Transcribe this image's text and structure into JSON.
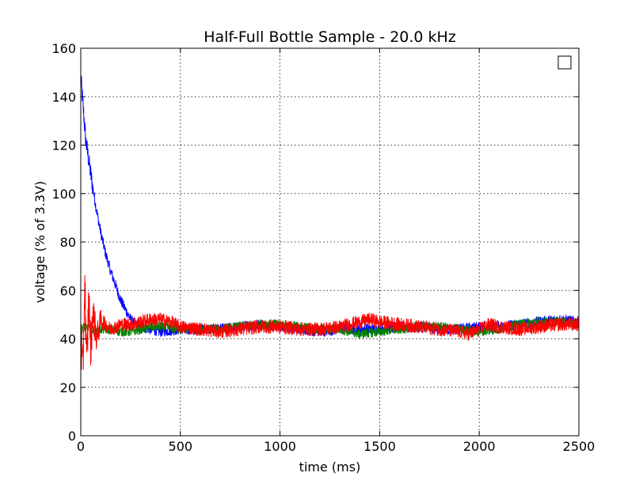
{
  "chart_data": {
    "type": "line",
    "title": "Half-Full Bottle Sample - 20.0 kHz",
    "xlabel": "time (ms)",
    "ylabel": "voltage (% of 3.3V)",
    "xlim": [
      0,
      2500
    ],
    "ylim": [
      0,
      160
    ],
    "xticks": [
      0,
      500,
      1000,
      1500,
      2000,
      2500
    ],
    "yticks": [
      0,
      20,
      40,
      60,
      80,
      100,
      120,
      140,
      160
    ],
    "grid": true,
    "legend": "top-right (empty box)",
    "series": [
      {
        "color": "#0000ff",
        "x": [
          0,
          10,
          25,
          50,
          75,
          100,
          125,
          150,
          175,
          200,
          225,
          250,
          275,
          300,
          350,
          400,
          500,
          600,
          700,
          800,
          900,
          1000,
          1100,
          1200,
          1300,
          1400,
          1500,
          1600,
          1700,
          1800,
          1900,
          2000,
          2100,
          2200,
          2300,
          2400,
          2500
        ],
        "y": [
          148,
          138,
          122,
          108,
          95,
          84,
          75,
          68,
          62,
          56,
          52,
          48,
          46,
          45,
          44,
          43,
          44,
          44,
          44,
          45,
          46,
          45,
          44,
          43,
          44,
          44,
          44,
          45,
          45,
          44,
          44,
          45,
          45,
          46,
          47,
          48,
          47
        ]
      },
      {
        "color": "#008000",
        "x": [
          0,
          25,
          50,
          75,
          100,
          150,
          200,
          250,
          300,
          350,
          400,
          500,
          600,
          700,
          800,
          900,
          1000,
          1100,
          1200,
          1300,
          1400,
          1500,
          1600,
          1700,
          1800,
          1900,
          2000,
          2100,
          2200,
          2300,
          2400,
          2500
        ],
        "y": [
          44,
          45,
          44,
          43,
          44,
          44,
          43,
          43,
          44,
          45,
          45,
          44,
          44,
          44,
          45,
          46,
          46,
          45,
          44,
          44,
          42,
          43,
          44,
          45,
          45,
          44,
          43,
          44,
          46,
          47,
          47,
          46
        ]
      },
      {
        "color": "#ff0000",
        "x": [
          0,
          10,
          20,
          30,
          40,
          50,
          60,
          80,
          100,
          150,
          200,
          250,
          300,
          350,
          400,
          450,
          500,
          600,
          700,
          800,
          900,
          1000,
          1100,
          1200,
          1300,
          1400,
          1450,
          1500,
          1600,
          1700,
          1800,
          1900,
          1950,
          2000,
          2050,
          2100,
          2200,
          2300,
          2400,
          2500
        ],
        "y": [
          45,
          22,
          65,
          28,
          58,
          35,
          52,
          40,
          48,
          44,
          46,
          46,
          47,
          48,
          48,
          47,
          45,
          44,
          43,
          44,
          45,
          45,
          44,
          44,
          45,
          47,
          48,
          47,
          46,
          45,
          44,
          43,
          42,
          44,
          46,
          45,
          44,
          45,
          46,
          46
        ]
      }
    ]
  }
}
